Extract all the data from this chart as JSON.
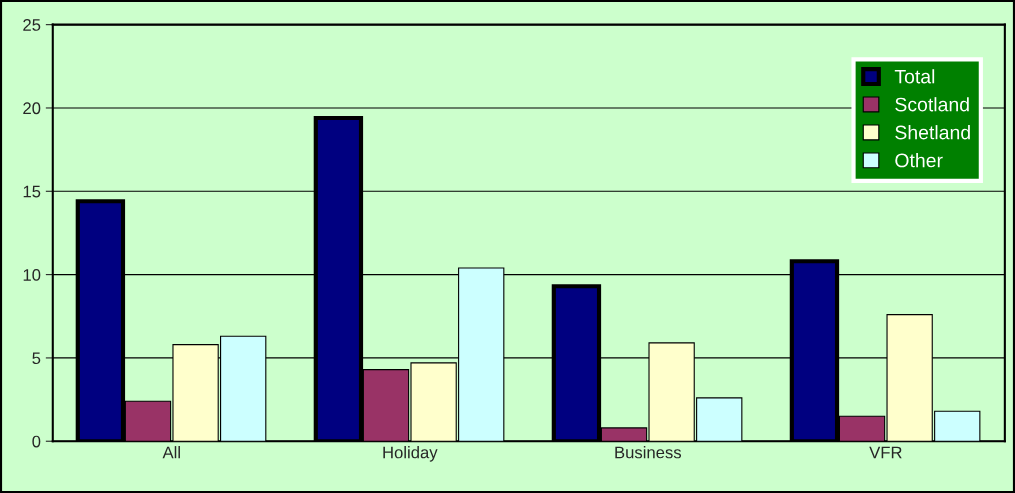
{
  "chart_data": {
    "type": "bar",
    "categories": [
      "All",
      "Holiday",
      "Business",
      "VFR"
    ],
    "series": [
      {
        "name": "Total",
        "color": "#000080",
        "values": [
          14.4,
          19.4,
          9.3,
          10.8
        ]
      },
      {
        "name": "Scotland",
        "color": "#993366",
        "values": [
          2.4,
          4.3,
          0.8,
          1.5
        ]
      },
      {
        "name": "Shetland",
        "color": "#ffffcc",
        "values": [
          5.8,
          4.7,
          5.9,
          7.6
        ]
      },
      {
        "name": "Other",
        "color": "#ccffff",
        "values": [
          6.3,
          10.4,
          2.6,
          1.8
        ]
      }
    ],
    "ylim": [
      0,
      25
    ],
    "yticks": [
      0,
      5,
      10,
      15,
      20,
      25
    ],
    "grid": "y",
    "legend": "top right"
  }
}
